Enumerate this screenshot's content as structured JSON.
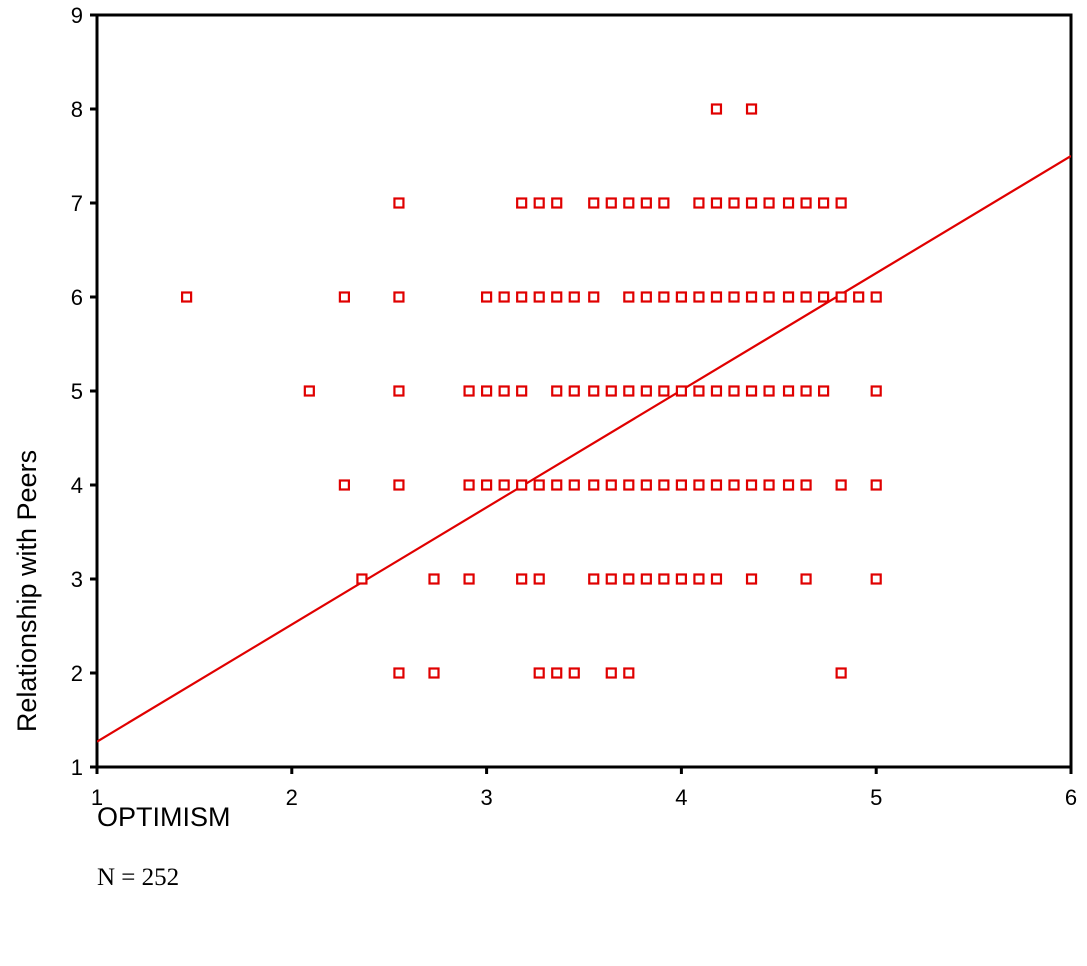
{
  "chart_data": {
    "type": "scatter",
    "xlabel": "OPTIMISM",
    "ylabel": "Relationship with Peers",
    "note": "N = 252",
    "xlim": [
      1,
      6
    ],
    "ylim": [
      1,
      9
    ],
    "xticks": [
      1,
      2,
      3,
      4,
      5,
      6
    ],
    "yticks": [
      1,
      2,
      3,
      4,
      5,
      6,
      7,
      8,
      9
    ],
    "marker": "hollow-square",
    "color": "#e00000",
    "fit_line": {
      "x": [
        1,
        6
      ],
      "y": [
        1.27,
        7.5
      ]
    },
    "points": [
      [
        1.46,
        6
      ],
      [
        2.09,
        5
      ],
      [
        2.27,
        6
      ],
      [
        2.27,
        4
      ],
      [
        2.36,
        3
      ],
      [
        2.55,
        7
      ],
      [
        2.55,
        6
      ],
      [
        2.55,
        5
      ],
      [
        2.55,
        4
      ],
      [
        2.55,
        2
      ],
      [
        2.73,
        3
      ],
      [
        2.73,
        2
      ],
      [
        2.91,
        5
      ],
      [
        2.91,
        4
      ],
      [
        2.91,
        3
      ],
      [
        3.0,
        6
      ],
      [
        3.0,
        5
      ],
      [
        3.0,
        4
      ],
      [
        3.09,
        6
      ],
      [
        3.09,
        5
      ],
      [
        3.09,
        4
      ],
      [
        3.18,
        7
      ],
      [
        3.18,
        6
      ],
      [
        3.18,
        5
      ],
      [
        3.18,
        4
      ],
      [
        3.18,
        3
      ],
      [
        3.27,
        7
      ],
      [
        3.27,
        6
      ],
      [
        3.27,
        4
      ],
      [
        3.27,
        3
      ],
      [
        3.27,
        2
      ],
      [
        3.36,
        7
      ],
      [
        3.36,
        6
      ],
      [
        3.36,
        5
      ],
      [
        3.36,
        4
      ],
      [
        3.36,
        2
      ],
      [
        3.45,
        6
      ],
      [
        3.45,
        5
      ],
      [
        3.45,
        4
      ],
      [
        3.45,
        2
      ],
      [
        3.55,
        7
      ],
      [
        3.55,
        6
      ],
      [
        3.55,
        5
      ],
      [
        3.55,
        4
      ],
      [
        3.55,
        3
      ],
      [
        3.64,
        7
      ],
      [
        3.64,
        5
      ],
      [
        3.64,
        4
      ],
      [
        3.64,
        3
      ],
      [
        3.64,
        2
      ],
      [
        3.73,
        7
      ],
      [
        3.73,
        6
      ],
      [
        3.73,
        5
      ],
      [
        3.73,
        4
      ],
      [
        3.73,
        3
      ],
      [
        3.73,
        2
      ],
      [
        3.82,
        7
      ],
      [
        3.82,
        6
      ],
      [
        3.82,
        5
      ],
      [
        3.82,
        4
      ],
      [
        3.82,
        3
      ],
      [
        3.91,
        7
      ],
      [
        3.91,
        6
      ],
      [
        3.91,
        5
      ],
      [
        3.91,
        4
      ],
      [
        3.91,
        3
      ],
      [
        4.0,
        6
      ],
      [
        4.0,
        5
      ],
      [
        4.0,
        4
      ],
      [
        4.0,
        3
      ],
      [
        4.09,
        7
      ],
      [
        4.09,
        6
      ],
      [
        4.09,
        5
      ],
      [
        4.09,
        4
      ],
      [
        4.09,
        3
      ],
      [
        4.18,
        8
      ],
      [
        4.18,
        7
      ],
      [
        4.18,
        6
      ],
      [
        4.18,
        5
      ],
      [
        4.18,
        4
      ],
      [
        4.18,
        3
      ],
      [
        4.27,
        7
      ],
      [
        4.27,
        6
      ],
      [
        4.27,
        5
      ],
      [
        4.27,
        4
      ],
      [
        4.36,
        8
      ],
      [
        4.36,
        7
      ],
      [
        4.36,
        6
      ],
      [
        4.36,
        5
      ],
      [
        4.36,
        4
      ],
      [
        4.36,
        3
      ],
      [
        4.45,
        7
      ],
      [
        4.45,
        6
      ],
      [
        4.45,
        5
      ],
      [
        4.45,
        4
      ],
      [
        4.55,
        7
      ],
      [
        4.55,
        6
      ],
      [
        4.55,
        5
      ],
      [
        4.55,
        4
      ],
      [
        4.64,
        7
      ],
      [
        4.64,
        6
      ],
      [
        4.64,
        5
      ],
      [
        4.64,
        4
      ],
      [
        4.64,
        3
      ],
      [
        4.73,
        7
      ],
      [
        4.73,
        6
      ],
      [
        4.73,
        5
      ],
      [
        4.82,
        7
      ],
      [
        4.82,
        6
      ],
      [
        4.82,
        4
      ],
      [
        4.82,
        2
      ],
      [
        4.91,
        6
      ],
      [
        5.0,
        6
      ],
      [
        5.0,
        5
      ],
      [
        5.0,
        4
      ],
      [
        5.0,
        3
      ]
    ]
  }
}
